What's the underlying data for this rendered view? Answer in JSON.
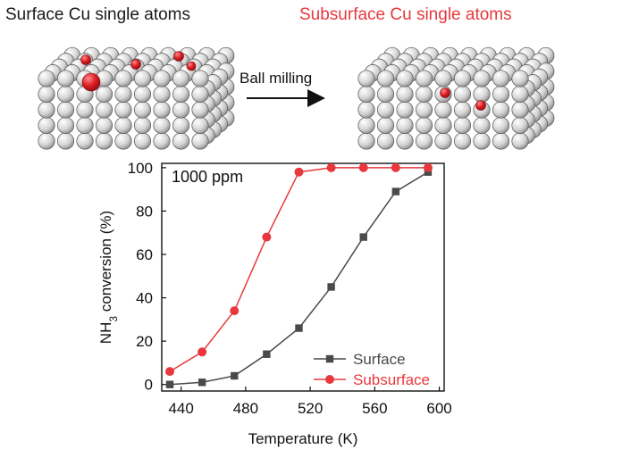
{
  "header": {
    "left_title": "Surface Cu single atoms",
    "right_title": "Subsurface Cu single atoms",
    "process_label": "Ball milling"
  },
  "colors": {
    "surface": "#4a4a4a",
    "subsurface": "#e8383d",
    "atom": "#d9d9d9",
    "cu": "#d21d24"
  },
  "chart_data": {
    "type": "line",
    "title": "",
    "annotation": "1000 ppm",
    "xlabel": "Temperature (K)",
    "ylabel_main": "NH",
    "ylabel_sub": "3",
    "ylabel_rest": " conversion (%)",
    "xlim": [
      428,
      603
    ],
    "ylim": [
      -3,
      102
    ],
    "xticks": [
      440,
      480,
      520,
      560,
      600
    ],
    "yticks": [
      0,
      20,
      40,
      60,
      80,
      100
    ],
    "legend_position": "bottom-right",
    "series": [
      {
        "name": "Surface",
        "marker": "square",
        "color": "#4a4a4a",
        "x": [
          433,
          453,
          473,
          493,
          513,
          533,
          553,
          573,
          593
        ],
        "y": [
          0,
          1,
          4,
          14,
          26,
          45,
          68,
          89,
          98
        ]
      },
      {
        "name": "Subsurface",
        "marker": "circle",
        "color": "#e8383d",
        "x": [
          433,
          453,
          473,
          493,
          513,
          533,
          553,
          573,
          593
        ],
        "y": [
          6,
          15,
          34,
          68,
          98,
          100,
          100,
          100,
          100
        ]
      }
    ]
  }
}
